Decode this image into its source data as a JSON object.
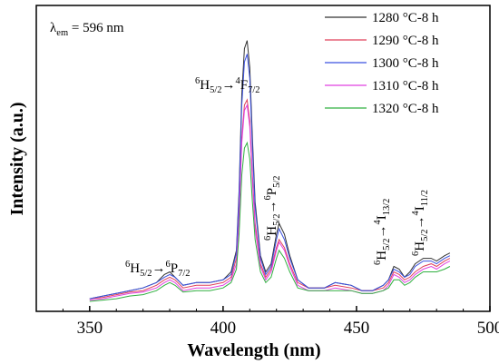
{
  "chart_data": {
    "type": "line",
    "title": "",
    "xlabel": "Wavelength (nm)",
    "ylabel": "Intensity (a.u.)",
    "xlim": [
      330,
      500
    ],
    "ylim": [
      0,
      1.05
    ],
    "xticks": [
      350,
      400,
      450,
      500
    ],
    "grid": false,
    "legend_position": "top-right",
    "annotation_excitation": {
      "symbol": "λ",
      "sub": "em",
      "rest": " = 596 nm"
    },
    "transitions": [
      {
        "id": "t1",
        "ground": "6",
        "gsub": "H",
        "gj": "5/2",
        "excited": "6",
        "esub": "P",
        "ej": "7/2"
      },
      {
        "id": "t2",
        "ground": "6",
        "gsub": "H",
        "gj": "5/2",
        "excited": "4",
        "esub": "F",
        "ej": "7/2"
      },
      {
        "id": "t3",
        "ground": "6",
        "gsub": "H",
        "gj": "5/2",
        "excited": "6",
        "esub": "P",
        "ej": "5/2"
      },
      {
        "id": "t4",
        "ground": "6",
        "gsub": "H",
        "gj": "5/2",
        "excited": "4",
        "esub": "I",
        "ej": "13/2"
      },
      {
        "id": "t5",
        "ground": "6",
        "gsub": "H",
        "gj": "5/2",
        "excited": "4",
        "esub": "I",
        "ej": "11/2"
      }
    ],
    "x": [
      350,
      355,
      360,
      365,
      370,
      375,
      378,
      380,
      382,
      385,
      390,
      395,
      400,
      403,
      405,
      406,
      407,
      408,
      409,
      410,
      411,
      412,
      414,
      416,
      418,
      420,
      421,
      423,
      425,
      428,
      432,
      438,
      442,
      448,
      452,
      456,
      460,
      462,
      464,
      466,
      468,
      470,
      472,
      475,
      478,
      480,
      483,
      485
    ],
    "series": [
      {
        "name": "1280 °C-8 h",
        "color": "#333333",
        "values": [
          0.02,
          0.03,
          0.04,
          0.05,
          0.06,
          0.08,
          0.11,
          0.12,
          0.1,
          0.07,
          0.08,
          0.08,
          0.09,
          0.12,
          0.2,
          0.42,
          0.78,
          0.95,
          0.98,
          0.88,
          0.62,
          0.38,
          0.18,
          0.12,
          0.15,
          0.26,
          0.3,
          0.26,
          0.18,
          0.09,
          0.06,
          0.06,
          0.08,
          0.07,
          0.05,
          0.05,
          0.07,
          0.09,
          0.14,
          0.13,
          0.1,
          0.12,
          0.15,
          0.17,
          0.17,
          0.16,
          0.18,
          0.19
        ]
      },
      {
        "name": "1290 °C-8 h",
        "color": "#e0405a",
        "values": [
          0.02,
          0.025,
          0.035,
          0.045,
          0.05,
          0.07,
          0.09,
          0.1,
          0.09,
          0.06,
          0.07,
          0.07,
          0.08,
          0.1,
          0.17,
          0.34,
          0.62,
          0.74,
          0.76,
          0.68,
          0.48,
          0.3,
          0.15,
          0.1,
          0.13,
          0.21,
          0.24,
          0.21,
          0.15,
          0.08,
          0.06,
          0.06,
          0.07,
          0.06,
          0.05,
          0.05,
          0.06,
          0.08,
          0.12,
          0.11,
          0.09,
          0.1,
          0.12,
          0.14,
          0.15,
          0.14,
          0.16,
          0.17
        ]
      },
      {
        "name": "1300 °C-8 h",
        "color": "#3a50e0",
        "values": [
          0.02,
          0.03,
          0.04,
          0.05,
          0.06,
          0.08,
          0.1,
          0.11,
          0.1,
          0.07,
          0.08,
          0.08,
          0.09,
          0.11,
          0.19,
          0.4,
          0.74,
          0.9,
          0.93,
          0.84,
          0.58,
          0.36,
          0.17,
          0.11,
          0.14,
          0.24,
          0.28,
          0.24,
          0.17,
          0.09,
          0.06,
          0.06,
          0.08,
          0.07,
          0.05,
          0.05,
          0.07,
          0.09,
          0.13,
          0.12,
          0.1,
          0.11,
          0.14,
          0.16,
          0.16,
          0.15,
          0.17,
          0.18
        ]
      },
      {
        "name": "1310 °C-8 h",
        "color": "#e040e0",
        "values": [
          0.015,
          0.02,
          0.03,
          0.04,
          0.045,
          0.06,
          0.08,
          0.09,
          0.08,
          0.05,
          0.06,
          0.06,
          0.07,
          0.09,
          0.15,
          0.32,
          0.6,
          0.72,
          0.74,
          0.66,
          0.46,
          0.28,
          0.14,
          0.09,
          0.12,
          0.2,
          0.23,
          0.2,
          0.14,
          0.07,
          0.05,
          0.05,
          0.06,
          0.05,
          0.04,
          0.04,
          0.05,
          0.07,
          0.11,
          0.1,
          0.08,
          0.09,
          0.11,
          0.13,
          0.14,
          0.13,
          0.15,
          0.16
        ]
      },
      {
        "name": "1320 °C-8 h",
        "color": "#30b040",
        "values": [
          0.01,
          0.015,
          0.02,
          0.03,
          0.035,
          0.05,
          0.07,
          0.08,
          0.07,
          0.045,
          0.05,
          0.05,
          0.06,
          0.08,
          0.13,
          0.26,
          0.48,
          0.58,
          0.6,
          0.54,
          0.38,
          0.24,
          0.12,
          0.08,
          0.1,
          0.17,
          0.2,
          0.17,
          0.12,
          0.06,
          0.05,
          0.05,
          0.05,
          0.05,
          0.04,
          0.04,
          0.05,
          0.06,
          0.09,
          0.09,
          0.07,
          0.08,
          0.1,
          0.12,
          0.12,
          0.12,
          0.13,
          0.14
        ]
      }
    ]
  }
}
